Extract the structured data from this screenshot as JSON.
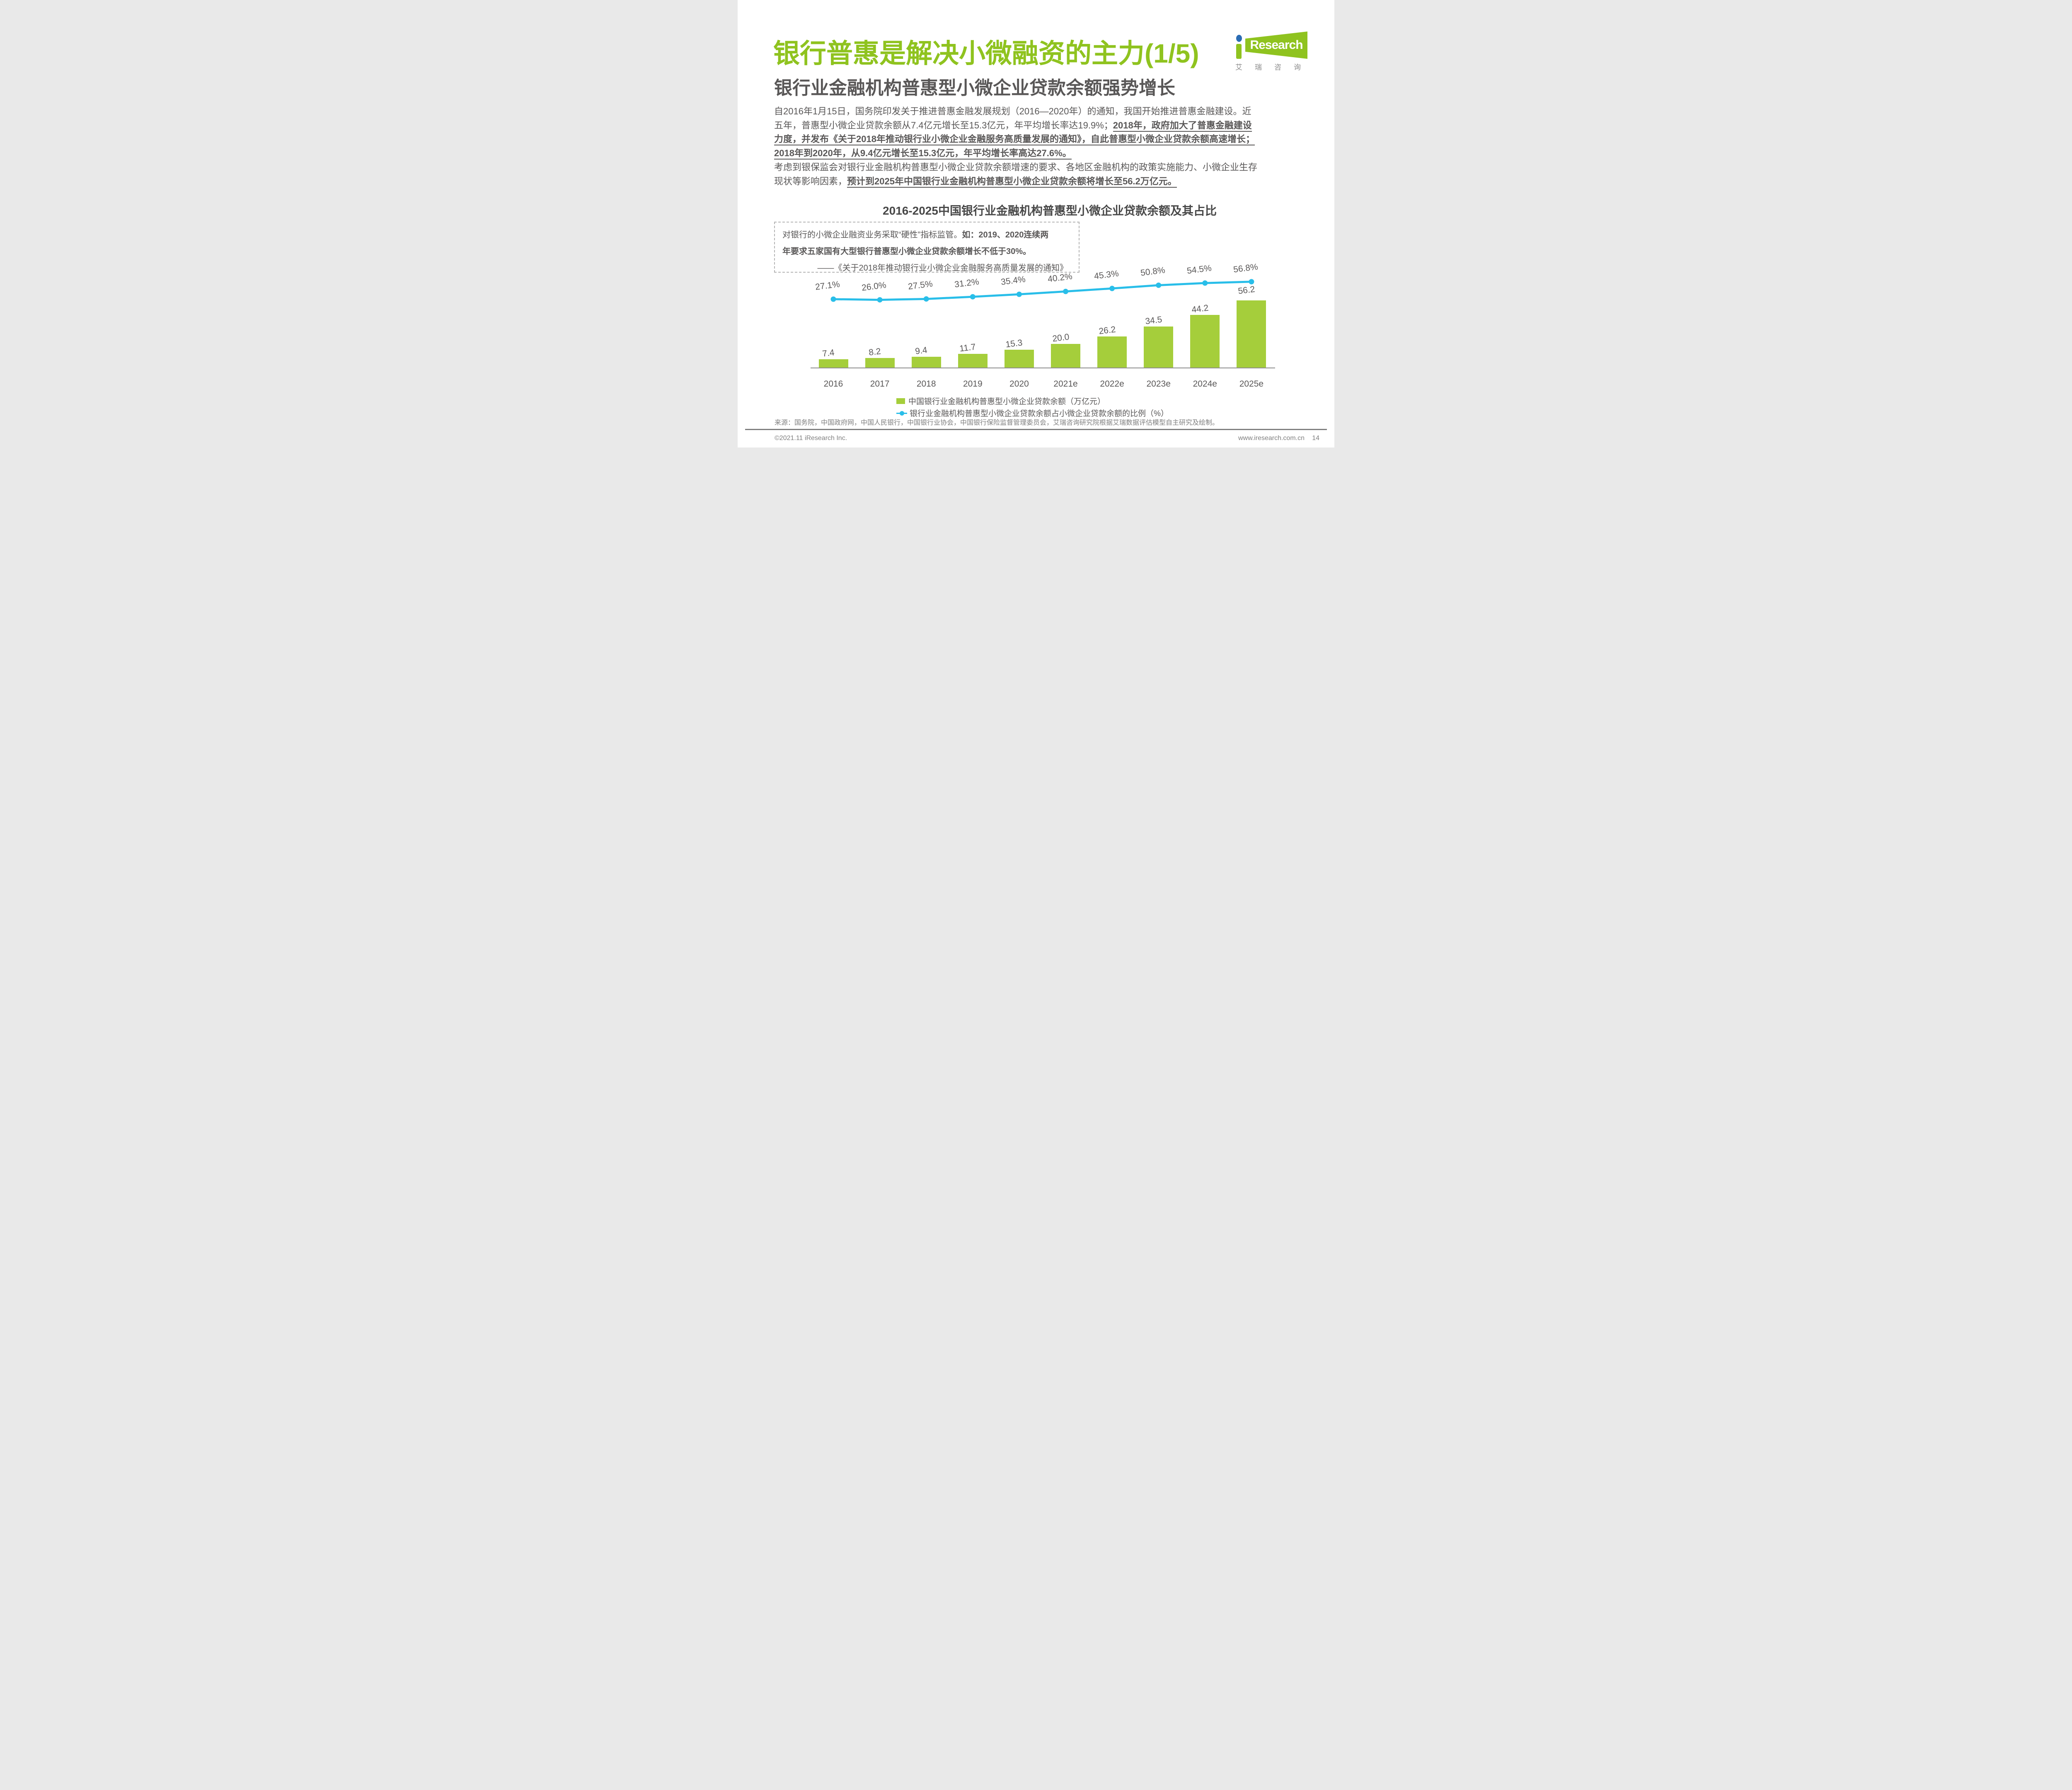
{
  "page": {
    "title": "银行普惠是解决小微融资的主力(1/5)",
    "subtitle": "银行业金融机构普惠型小微企业贷款余额强势增长",
    "logo": {
      "brand_en": "Research",
      "brand_i": "i",
      "brand_cn": "艾瑞咨询"
    },
    "source": "来源：国务院，中国政府网，中国人民银行，中国银行业协会，中国银行保险监督管理委员会，艾瑞咨询研究院根据艾瑞数据评估模型自主研究及绘制。",
    "footer": {
      "copyright": "©2021.11 iResearch Inc.",
      "website": "www.iresearch.com.cn",
      "page_number": "14"
    },
    "colors": {
      "title_green": "#8FC31F",
      "text_gray": "#595757",
      "bar_green": "#A5CE3B",
      "line_cyan": "#29BEE9"
    }
  },
  "body_lines": [
    [
      {
        "t": "自2016年1月15日，国务院印发关于推进普惠金融发展规划（2016—2020年）的通知，我国开始推进普惠金融建设。近",
        "b": false
      }
    ],
    [
      {
        "t": "五年，普惠型小微企业贷款余额从7.4亿元增长至15.3亿元，年平均增长率达19.9%；",
        "b": false
      },
      {
        "t": "2018年，政府加大了普惠金融建设",
        "b": true
      }
    ],
    [
      {
        "t": "力度，并发布《关于2018年推动银行业小微企业金融服务高质量发展的通知》，自此普惠型小微企业贷款余额高速增长；",
        "b": true
      }
    ],
    [
      {
        "t": "2018年到2020年，从9.4亿元增长至15.3亿元，年平均增长率高达27.6%。",
        "b": true
      }
    ],
    [
      {
        "t": "考虑到银保监会对银行业金融机构普惠型小微企业贷款余额增速的要求、各地区金融机构的政策实施能力、小微企业生存",
        "b": false
      }
    ],
    [
      {
        "t": "现状等影响因素，",
        "b": false
      },
      {
        "t": "预计到2025年中国银行业金融机构普惠型小微企业贷款余额将增长至56.2万亿元。",
        "b": true
      }
    ]
  ],
  "callout": {
    "line1_normal": "对银行的小微企业融资业务采取“硬性”指标监管。",
    "line1_bold": "如：2019、2020连续两",
    "line2_bold": "年要求五家国有大型银行普惠型小微企业贷款余额增长不低于30%。",
    "attribution": "——《关于2018年推动银行业小微企业金融服务高质量发展的通知》"
  },
  "chart_data": {
    "type": "combo",
    "title": "2016-2025中国银行业金融机构普惠型小微企业贷款余额及其占比",
    "categories": [
      "2016",
      "2017",
      "2018",
      "2019",
      "2020",
      "2021e",
      "2022e",
      "2023e",
      "2024e",
      "2025e"
    ],
    "series": [
      {
        "name": "中国银行业金融机构普惠型小微企业贷款余额（万亿元）",
        "type": "bar",
        "color": "#A5CE3B",
        "values": [
          7.4,
          8.2,
          9.4,
          11.7,
          15.3,
          20.0,
          26.2,
          34.5,
          44.2,
          56.2
        ]
      },
      {
        "name": "银行业金融机构普惠型小微企业贷款余额占小微企业贷款余额的比例（%）",
        "type": "line",
        "color": "#29BEE9",
        "values": [
          27.1,
          26.0,
          27.5,
          31.2,
          35.4,
          40.2,
          45.3,
          50.8,
          54.5,
          56.8
        ]
      }
    ],
    "xlabel": "",
    "ylabel": "",
    "grid": false,
    "legend_position": "bottom"
  }
}
